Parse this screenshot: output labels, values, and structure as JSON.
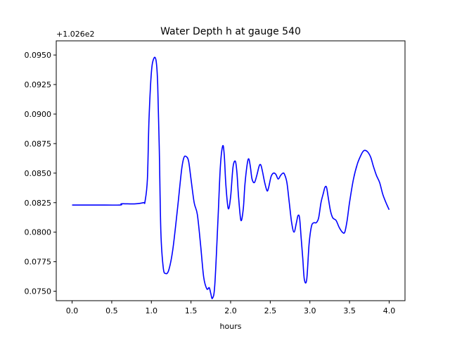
{
  "chart_data": {
    "type": "line",
    "title": "Water Depth h at gauge 540",
    "xlabel": "hours",
    "ylabel": "",
    "offset_label": "+1.026e2",
    "xlim": [
      -0.2,
      4.2
    ],
    "ylim": [
      0.0742,
      0.0962
    ],
    "xticks": [
      0.0,
      0.5,
      1.0,
      1.5,
      2.0,
      2.5,
      3.0,
      3.5,
      4.0
    ],
    "xtick_labels": [
      "0.0",
      "0.5",
      "1.0",
      "1.5",
      "2.0",
      "2.5",
      "3.0",
      "3.5",
      "4.0"
    ],
    "yticks": [
      0.075,
      0.0775,
      0.08,
      0.0825,
      0.085,
      0.0875,
      0.09,
      0.0925,
      0.095
    ],
    "ytick_labels": [
      "0.0750",
      "0.0775",
      "0.0800",
      "0.0825",
      "0.0850",
      "0.0875",
      "0.0900",
      "0.0925",
      "0.0950"
    ],
    "grid": false,
    "line_color": "#0000ff",
    "series": [
      {
        "x": [
          0.0,
          0.3,
          0.6,
          0.62,
          0.7,
          0.8,
          0.9,
          0.92,
          0.95,
          0.97,
          1.0,
          1.03,
          1.06,
          1.08,
          1.1,
          1.12,
          1.15,
          1.18,
          1.22,
          1.27,
          1.33,
          1.38,
          1.41,
          1.44,
          1.47,
          1.5,
          1.54,
          1.58,
          1.62,
          1.66,
          1.7,
          1.73,
          1.75,
          1.77,
          1.8,
          1.84,
          1.87,
          1.9,
          1.92,
          1.94,
          1.97,
          2.0,
          2.03,
          2.06,
          2.08,
          2.1,
          2.13,
          2.16,
          2.18,
          2.21,
          2.23,
          2.25,
          2.27,
          2.3,
          2.33,
          2.36,
          2.38,
          2.4,
          2.43,
          2.46,
          2.48,
          2.51,
          2.54,
          2.57,
          2.6,
          2.63,
          2.66,
          2.68,
          2.71,
          2.74,
          2.77,
          2.8,
          2.83,
          2.85,
          2.87,
          2.89,
          2.91,
          2.93,
          2.96,
          2.99,
          3.02,
          3.05,
          3.08,
          3.11,
          3.14,
          3.17,
          3.19,
          3.21,
          3.23,
          3.26,
          3.29,
          3.33,
          3.37,
          3.41,
          3.44,
          3.47,
          3.5,
          3.55,
          3.6,
          3.65,
          3.68,
          3.71,
          3.74,
          3.77,
          3.8,
          3.84,
          3.88,
          3.92,
          3.96,
          4.0
        ],
        "y": [
          0.0823,
          0.0823,
          0.0823,
          0.0824,
          0.0824,
          0.0824,
          0.0825,
          0.0826,
          0.0845,
          0.0895,
          0.0935,
          0.0947,
          0.0945,
          0.0925,
          0.087,
          0.08,
          0.077,
          0.0765,
          0.0768,
          0.0785,
          0.082,
          0.0852,
          0.0863,
          0.0864,
          0.086,
          0.0845,
          0.0825,
          0.0815,
          0.079,
          0.0762,
          0.0752,
          0.0753,
          0.0748,
          0.0744,
          0.0755,
          0.081,
          0.0855,
          0.0873,
          0.0865,
          0.084,
          0.082,
          0.083,
          0.0855,
          0.086,
          0.085,
          0.083,
          0.081,
          0.082,
          0.084,
          0.0858,
          0.0862,
          0.0855,
          0.0845,
          0.0842,
          0.0848,
          0.0856,
          0.0857,
          0.0852,
          0.0842,
          0.0835,
          0.0838,
          0.0847,
          0.085,
          0.0849,
          0.0845,
          0.0848,
          0.085,
          0.0849,
          0.0842,
          0.0825,
          0.0808,
          0.08,
          0.0808,
          0.0814,
          0.0812,
          0.0795,
          0.0778,
          0.076,
          0.076,
          0.079,
          0.0805,
          0.0808,
          0.0808,
          0.0812,
          0.0825,
          0.0833,
          0.0838,
          0.0838,
          0.083,
          0.0818,
          0.0812,
          0.081,
          0.0804,
          0.08,
          0.08,
          0.081,
          0.0825,
          0.0845,
          0.0858,
          0.0866,
          0.0869,
          0.0869,
          0.0867,
          0.0863,
          0.0856,
          0.0848,
          0.0842,
          0.0832,
          0.0825,
          0.0819
        ]
      }
    ]
  }
}
